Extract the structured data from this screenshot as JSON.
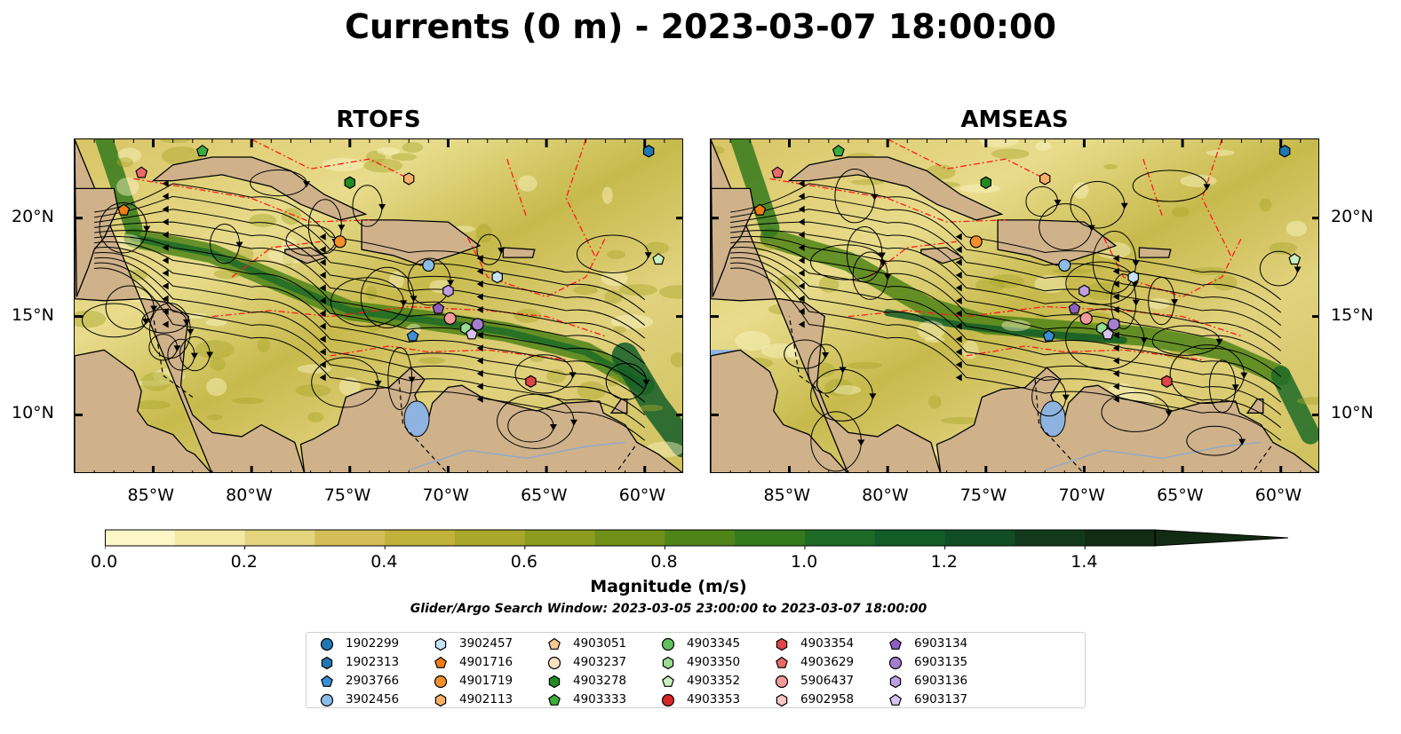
{
  "title": "Currents (0 m) - 2023-03-07 18:00:00",
  "panels": [
    {
      "title": "RTOFS"
    },
    {
      "title": "AMSEAS"
    }
  ],
  "axes": {
    "lon_labels": [
      "85°W",
      "80°W",
      "75°W",
      "70°W",
      "65°W",
      "60°W"
    ],
    "lat_labels": [
      "20°N",
      "15°N",
      "10°N"
    ],
    "lon_range": [
      -89,
      -58
    ],
    "lat_range": [
      7,
      24
    ]
  },
  "colorbar": {
    "label": "Magnitude (m/s)",
    "ticks": [
      "0.0",
      "0.2",
      "0.4",
      "0.6",
      "0.8",
      "1.0",
      "1.2",
      "1.4"
    ],
    "range": [
      0,
      1.5
    ],
    "extend": "max",
    "colors": [
      "#fdf7c7",
      "#f3e8a4",
      "#e3d47d",
      "#d3be59",
      "#c1b23b",
      "#a9a72b",
      "#8c9c1f",
      "#6e9019",
      "#4f8418",
      "#347a1c",
      "#1d6b27",
      "#135d28",
      "#114d24",
      "#12391b",
      "#122b13"
    ]
  },
  "search_window": "Glider/Argo Search Window: 2023-03-05 23:00:00 to 2023-03-07 18:00:00",
  "legend": [
    {
      "id": "1902299",
      "marker": "circle",
      "color": "#1f77b4"
    },
    {
      "id": "1902313",
      "marker": "hexagon",
      "color": "#1f77b4"
    },
    {
      "id": "2903766",
      "marker": "pentagon",
      "color": "#3b8fd6"
    },
    {
      "id": "3902456",
      "marker": "circle",
      "color": "#8cbde8"
    },
    {
      "id": "3902457",
      "marker": "hexagon",
      "color": "#c6e2f7"
    },
    {
      "id": "4901716",
      "marker": "pentagon",
      "color": "#f07d12"
    },
    {
      "id": "4901719",
      "marker": "circle",
      "color": "#f58f2a"
    },
    {
      "id": "4902113",
      "marker": "hexagon",
      "color": "#fbb067"
    },
    {
      "id": "4903051",
      "marker": "pentagon",
      "color": "#fdc796"
    },
    {
      "id": "4903237",
      "marker": "circle",
      "color": "#fde0c2"
    },
    {
      "id": "4903278",
      "marker": "hexagon",
      "color": "#238b22"
    },
    {
      "id": "4903333",
      "marker": "pentagon",
      "color": "#3aad3c"
    },
    {
      "id": "4903345",
      "marker": "circle",
      "color": "#62c162"
    },
    {
      "id": "4903350",
      "marker": "hexagon",
      "color": "#98dc8e"
    },
    {
      "id": "4903352",
      "marker": "pentagon",
      "color": "#c7efbf"
    },
    {
      "id": "4903353",
      "marker": "circle",
      "color": "#d62728"
    },
    {
      "id": "4903354",
      "marker": "hexagon",
      "color": "#e04446"
    },
    {
      "id": "4903629",
      "marker": "pentagon",
      "color": "#ea6a6a"
    },
    {
      "id": "5906437",
      "marker": "circle",
      "color": "#f29a9a"
    },
    {
      "id": "6902958",
      "marker": "hexagon",
      "color": "#f9c6c6"
    },
    {
      "id": "6903134",
      "marker": "pentagon",
      "color": "#8f5fc0"
    },
    {
      "id": "6903135",
      "marker": "circle",
      "color": "#a57ed1"
    },
    {
      "id": "6903136",
      "marker": "hexagon",
      "color": "#bf9fe2"
    },
    {
      "id": "6903137",
      "marker": "pentagon",
      "color": "#d9c4f1"
    }
  ],
  "platforms": [
    {
      "id": "4903333",
      "lon": -82.5,
      "lat": 23.4
    },
    {
      "id": "4903629",
      "lon": -85.6,
      "lat": 22.3
    },
    {
      "id": "4901716",
      "lon": -86.5,
      "lat": 20.4
    },
    {
      "id": "4903278",
      "lon": -75.0,
      "lat": 21.8
    },
    {
      "id": "4902113",
      "lon": -72.0,
      "lat": 22.0
    },
    {
      "id": "4901719",
      "lon": -75.5,
      "lat": 18.8
    },
    {
      "id": "3902456",
      "lon": -71.0,
      "lat": 17.6
    },
    {
      "id": "3902457",
      "lon": -67.5,
      "lat": 17.0
    },
    {
      "id": "6903136",
      "lon": -70.0,
      "lat": 16.3
    },
    {
      "id": "6903134",
      "lon": -70.5,
      "lat": 15.4
    },
    {
      "id": "5906437",
      "lon": -69.9,
      "lat": 14.9
    },
    {
      "id": "6903135",
      "lon": -68.5,
      "lat": 14.6
    },
    {
      "id": "4903350",
      "lon": -69.1,
      "lat": 14.4
    },
    {
      "id": "6903137",
      "lon": -68.8,
      "lat": 14.1
    },
    {
      "id": "2903766",
      "lon": -71.8,
      "lat": 14.0
    },
    {
      "id": "4903354",
      "lon": -65.8,
      "lat": 11.7
    },
    {
      "id": "4903352",
      "lon": -59.3,
      "lat": 17.9
    },
    {
      "id": "1902313",
      "lon": -59.8,
      "lat": 23.4
    }
  ]
}
